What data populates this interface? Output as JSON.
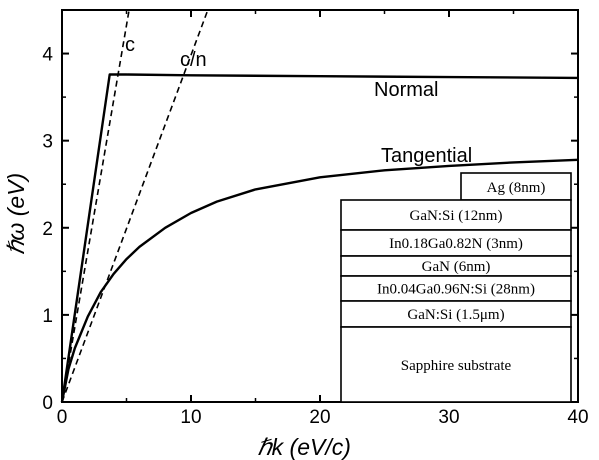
{
  "chart_data": {
    "type": "line",
    "xlabel": "ℏk (eV/c)",
    "ylabel": "ℏω (eV)",
    "xlim": [
      0,
      40
    ],
    "ylim": [
      0,
      4.5
    ],
    "xticks": [
      "0",
      "10",
      "20",
      "30",
      "40"
    ],
    "yticks": [
      "0",
      "1",
      "2",
      "3",
      "4"
    ],
    "grid": false,
    "series": [
      {
        "name": "c",
        "style": "dashed",
        "x": [
          0,
          5.2
        ],
        "y": [
          0,
          4.5
        ]
      },
      {
        "name": "c/n",
        "style": "dashed",
        "x": [
          0,
          11.3
        ],
        "y": [
          0,
          4.5
        ]
      },
      {
        "name": "Normal",
        "style": "solid",
        "x": [
          0,
          3.7,
          5,
          10,
          20,
          30,
          40
        ],
        "y": [
          0,
          3.76,
          3.76,
          3.75,
          3.74,
          3.73,
          3.72
        ]
      },
      {
        "name": "Tangential",
        "style": "solid",
        "x": [
          0,
          0.5,
          1,
          2,
          3,
          4,
          5,
          6,
          8,
          10,
          12,
          15,
          20,
          25,
          30,
          35,
          40
        ],
        "y": [
          0,
          0.38,
          0.62,
          0.98,
          1.26,
          1.47,
          1.64,
          1.78,
          2.0,
          2.17,
          2.3,
          2.44,
          2.58,
          2.66,
          2.71,
          2.75,
          2.78
        ]
      }
    ],
    "layers": [
      "Ag (8nm)",
      "GaN:Si (12nm)",
      "In0.18Ga0.82N (3nm)",
      "GaN (6nm)",
      "In0.04Ga0.96N:Si (28nm)",
      "GaN:Si (1.5μm)",
      "Sapphire substrate"
    ]
  }
}
